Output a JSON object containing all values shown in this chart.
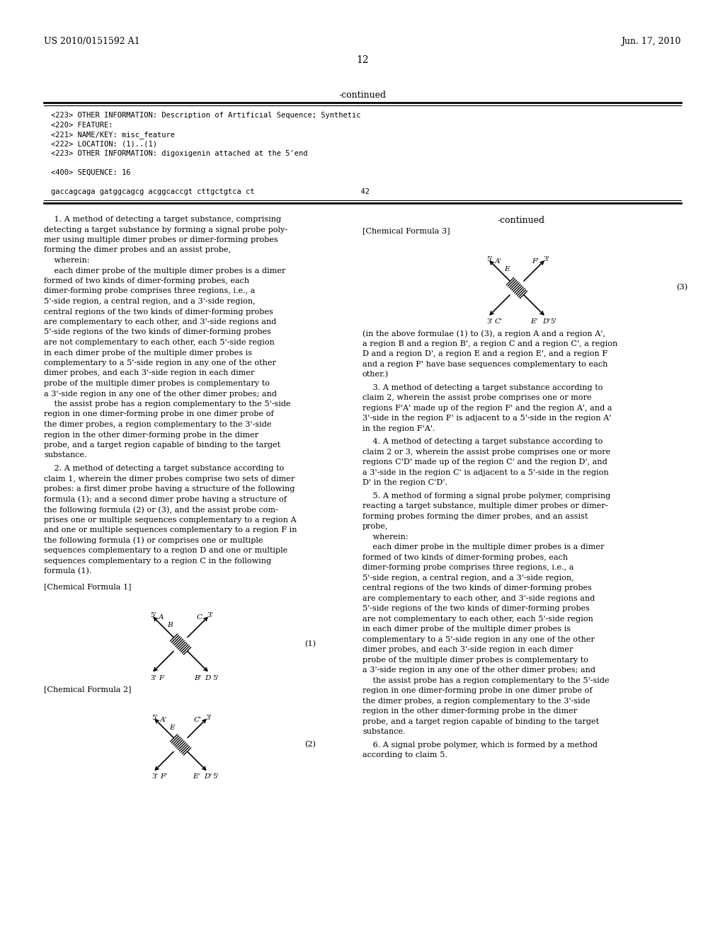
{
  "page_header_left": "US 2010/0151592 A1",
  "page_header_right": "Jun. 17, 2010",
  "page_number": "12",
  "bg_color": "#ffffff"
}
